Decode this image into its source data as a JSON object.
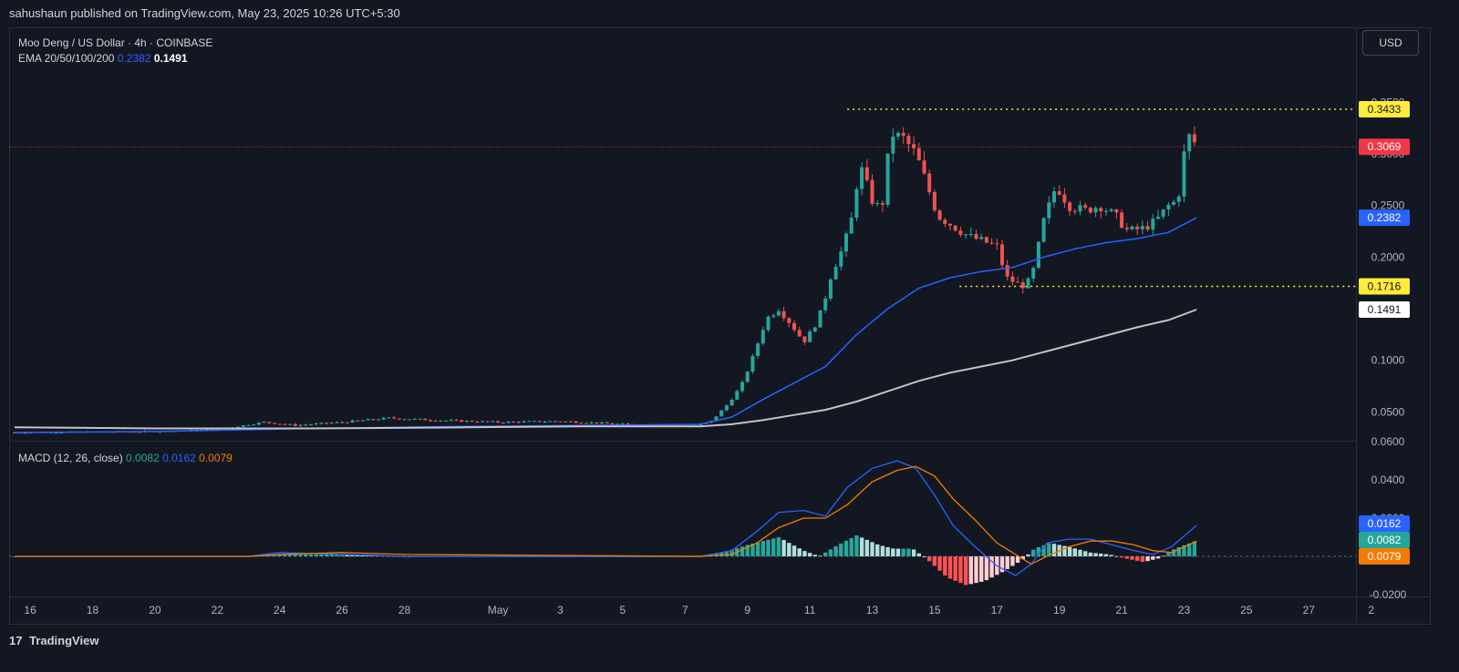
{
  "publisher": "sahushaun published on TradingView.com, May 23, 2025 10:26 UTC+5:30",
  "currency": "USD",
  "brand": "TradingView",
  "legend": {
    "symbol": "Moo Deng / US Dollar · 4h · COINBASE",
    "ema_label": "EMA 20/50/100/200",
    "ema_v1": "0.2382",
    "ema_v2": "0.1491",
    "macd_label": "MACD (12, 26, close)",
    "macd_hist": "0.0082",
    "macd_line": "0.0162",
    "macd_signal": "0.0079"
  },
  "price_badges": [
    {
      "text": "0.3433",
      "value": 0.3433,
      "bg": "#ffeb3b",
      "fg": "#131722"
    },
    {
      "text": "0.3069",
      "value": 0.3069,
      "bg": "#f23645",
      "fg": "#ffffff"
    },
    {
      "text": "0.2382",
      "value": 0.2382,
      "bg": "#2962ff",
      "fg": "#ffffff"
    },
    {
      "text": "0.1716",
      "value": 0.1716,
      "bg": "#ffeb3b",
      "fg": "#131722"
    },
    {
      "text": "0.1491",
      "value": 0.1491,
      "bg": "#ffffff",
      "fg": "#131722"
    }
  ],
  "macd_badges": [
    {
      "text": "0.0162",
      "value": 0.0162,
      "bg": "#2962ff",
      "fg": "#ffffff"
    },
    {
      "text": "0.0082",
      "value": 0.0082,
      "bg": "#26a69a",
      "fg": "#ffffff"
    },
    {
      "text": "0.0079",
      "value": 0.0079,
      "bg": "#f57c00",
      "fg": "#ffffff"
    }
  ],
  "chart_data": [
    {
      "type": "candlestick",
      "title": "Moo Deng / US Dollar · 4h · COINBASE",
      "ylim": [
        0,
        0.38
      ],
      "y_ticks": [
        {
          "label": "0.3500",
          "value": 0.35
        },
        {
          "label": "0.3000",
          "value": 0.3
        },
        {
          "label": "0.2500",
          "value": 0.25
        },
        {
          "label": "0.2000",
          "value": 0.2
        },
        {
          "label": "0.1000",
          "value": 0.1
        },
        {
          "label": "0.0500",
          "value": 0.05
        }
      ],
      "x_ticks": [
        {
          "label": "16",
          "day": -14
        },
        {
          "label": "18",
          "day": -12
        },
        {
          "label": "20",
          "day": -10
        },
        {
          "label": "22",
          "day": -8
        },
        {
          "label": "24",
          "day": -6
        },
        {
          "label": "26",
          "day": -4
        },
        {
          "label": "28",
          "day": -2
        },
        {
          "label": "May",
          "day": 1
        },
        {
          "label": "3",
          "day": 3
        },
        {
          "label": "5",
          "day": 5
        },
        {
          "label": "7",
          "day": 7
        },
        {
          "label": "9",
          "day": 9
        },
        {
          "label": "11",
          "day": 11
        },
        {
          "label": "13",
          "day": 13
        },
        {
          "label": "15",
          "day": 15
        },
        {
          "label": "17",
          "day": 17
        },
        {
          "label": "19",
          "day": 19
        },
        {
          "label": "21",
          "day": 21
        },
        {
          "label": "23",
          "day": 23
        },
        {
          "label": "25",
          "day": 25
        },
        {
          "label": "27",
          "day": 27
        },
        {
          "label": "2",
          "day": 29
        }
      ],
      "horizontal_levels": [
        {
          "value": 0.3433,
          "color": "#ffeb3b",
          "start_day": 12.2
        },
        {
          "value": 0.1716,
          "color": "#ffeb3b",
          "start_day": 15.8
        }
      ],
      "last_price_line": {
        "value": 0.3069,
        "color": "#f23645"
      },
      "price_path": [
        [
          -14.5,
          0.03
        ],
        [
          -10,
          0.031
        ],
        [
          -8,
          0.033
        ],
        [
          -6.5,
          0.04
        ],
        [
          -5.5,
          0.037
        ],
        [
          -4,
          0.04
        ],
        [
          -2.5,
          0.044
        ],
        [
          -1,
          0.042
        ],
        [
          1,
          0.04
        ],
        [
          3,
          0.041
        ],
        [
          5,
          0.038
        ],
        [
          7.2,
          0.036
        ],
        [
          7.8,
          0.04
        ],
        [
          8.3,
          0.055
        ],
        [
          8.8,
          0.075
        ],
        [
          9.2,
          0.105
        ],
        [
          9.6,
          0.14
        ],
        [
          10,
          0.15
        ],
        [
          10.4,
          0.135
        ],
        [
          10.8,
          0.118
        ],
        [
          11.1,
          0.13
        ],
        [
          11.4,
          0.15
        ],
        [
          11.7,
          0.185
        ],
        [
          12,
          0.205
        ],
        [
          12.3,
          0.23
        ],
        [
          12.6,
          0.29
        ],
        [
          13,
          0.255
        ],
        [
          13.3,
          0.245
        ],
        [
          13.6,
          0.32
        ],
        [
          14,
          0.315
        ],
        [
          14.4,
          0.3
        ],
        [
          14.7,
          0.275
        ],
        [
          15.1,
          0.24
        ],
        [
          15.6,
          0.23
        ],
        [
          16.1,
          0.22
        ],
        [
          16.6,
          0.215
        ],
        [
          17,
          0.21
        ],
        [
          17.3,
          0.18
        ],
        [
          17.8,
          0.172
        ],
        [
          18.1,
          0.178
        ],
        [
          18.5,
          0.235
        ],
        [
          18.9,
          0.27
        ],
        [
          19.3,
          0.25
        ],
        [
          19.8,
          0.245
        ],
        [
          20.3,
          0.25
        ],
        [
          20.8,
          0.24
        ],
        [
          21.2,
          0.225
        ],
        [
          21.7,
          0.228
        ],
        [
          22.1,
          0.235
        ],
        [
          22.5,
          0.25
        ],
        [
          22.8,
          0.255
        ],
        [
          23,
          0.3
        ],
        [
          23.2,
          0.32
        ],
        [
          23.4,
          0.307
        ]
      ],
      "series": [
        {
          "name": "EMA 20/50/100/200",
          "color": "#2962ff",
          "value": 0.2382,
          "x": [
            -14.5,
            -10,
            -5,
            0,
            4,
            7.5,
            8.5,
            9.5,
            10.5,
            11.5,
            12.5,
            13.5,
            14.5,
            15.5,
            16.5,
            17.5,
            18.5,
            19.5,
            20.5,
            21.5,
            22.5,
            23.4
          ],
          "y": [
            0.03,
            0.031,
            0.034,
            0.036,
            0.037,
            0.038,
            0.045,
            0.062,
            0.078,
            0.094,
            0.125,
            0.15,
            0.17,
            0.18,
            0.186,
            0.19,
            0.2,
            0.208,
            0.214,
            0.218,
            0.224,
            0.2382
          ]
        },
        {
          "name": "EMA 20/50/100/200",
          "color": "#c4c4c4",
          "value": 0.1491,
          "x": [
            -14.5,
            -10,
            -5,
            0,
            4,
            7.5,
            8.5,
            9.5,
            10.5,
            11.5,
            12.5,
            13.5,
            14.5,
            15.5,
            16.5,
            17.5,
            18.5,
            19.5,
            20.5,
            21.5,
            22.5,
            23.4
          ],
          "y": [
            0.035,
            0.034,
            0.034,
            0.035,
            0.036,
            0.036,
            0.038,
            0.042,
            0.047,
            0.052,
            0.06,
            0.07,
            0.08,
            0.088,
            0.094,
            0.1,
            0.108,
            0.116,
            0.124,
            0.132,
            0.139,
            0.1491
          ]
        }
      ]
    },
    {
      "type": "bar",
      "title": "MACD (12, 26, close)",
      "ylim": [
        -0.022,
        0.066
      ],
      "y_ticks": [
        {
          "label": "0.0600",
          "value": 0.06
        },
        {
          "label": "0.0400",
          "value": 0.04
        },
        {
          "label": "0.0200",
          "value": 0.02
        },
        {
          "label": "-0.0200",
          "value": -0.02
        }
      ],
      "histogram_path": [
        [
          -14.5,
          0.0
        ],
        [
          -7,
          0.0
        ],
        [
          -6,
          0.001
        ],
        [
          -4,
          0.001
        ],
        [
          -2,
          0.0
        ],
        [
          7.5,
          0.0
        ],
        [
          8.2,
          0.002
        ],
        [
          9,
          0.006
        ],
        [
          10,
          0.01
        ],
        [
          10.8,
          0.003
        ],
        [
          11.3,
          0.0
        ],
        [
          11.8,
          0.005
        ],
        [
          12.5,
          0.011
        ],
        [
          13.2,
          0.006
        ],
        [
          13.7,
          0.004
        ],
        [
          14.3,
          0.004
        ],
        [
          14.8,
          -0.002
        ],
        [
          15.4,
          -0.011
        ],
        [
          16,
          -0.015
        ],
        [
          16.6,
          -0.013
        ],
        [
          17.2,
          -0.008
        ],
        [
          17.8,
          -0.002
        ],
        [
          18.2,
          0.004
        ],
        [
          18.7,
          0.007
        ],
        [
          19.3,
          0.005
        ],
        [
          20,
          0.002
        ],
        [
          20.6,
          0.001
        ],
        [
          21.1,
          -0.001
        ],
        [
          21.7,
          -0.003
        ],
        [
          22.2,
          -0.001
        ],
        [
          22.7,
          0.004
        ],
        [
          23.4,
          0.0082
        ]
      ],
      "series": [
        {
          "name": "MACD",
          "color": "#2962ff",
          "value": 0.0162,
          "x": [
            -14.5,
            -7,
            -6,
            -4,
            -2,
            7.5,
            8.5,
            9.3,
            10,
            10.8,
            11.5,
            12.2,
            13,
            13.8,
            14.4,
            15,
            15.6,
            16.3,
            17,
            17.6,
            18.1,
            18.6,
            19.3,
            20,
            20.7,
            21.4,
            22,
            22.6,
            23.4
          ],
          "y": [
            0.0,
            0.0,
            0.002,
            0.001,
            0.0,
            0.0,
            0.003,
            0.013,
            0.023,
            0.024,
            0.021,
            0.036,
            0.046,
            0.05,
            0.046,
            0.032,
            0.016,
            0.005,
            -0.005,
            -0.01,
            -0.004,
            0.007,
            0.009,
            0.009,
            0.006,
            0.003,
            0.001,
            0.005,
            0.0162
          ]
        },
        {
          "name": "Signal",
          "color": "#f57c00",
          "value": 0.0079,
          "x": [
            -14.5,
            -7,
            -6,
            -4,
            -2,
            7.5,
            8.5,
            9.3,
            10,
            10.8,
            11.5,
            12.2,
            13,
            13.8,
            14.4,
            15,
            15.6,
            16.3,
            17,
            17.6,
            18.1,
            18.6,
            19.3,
            20,
            20.7,
            21.4,
            22,
            22.6,
            23.4
          ],
          "y": [
            0.0,
            0.0,
            0.001,
            0.002,
            0.001,
            0.0,
            0.001,
            0.007,
            0.015,
            0.02,
            0.02,
            0.027,
            0.039,
            0.045,
            0.047,
            0.042,
            0.03,
            0.019,
            0.007,
            0.001,
            -0.004,
            0.0,
            0.005,
            0.008,
            0.008,
            0.006,
            0.003,
            0.002,
            0.0079
          ]
        }
      ]
    }
  ]
}
